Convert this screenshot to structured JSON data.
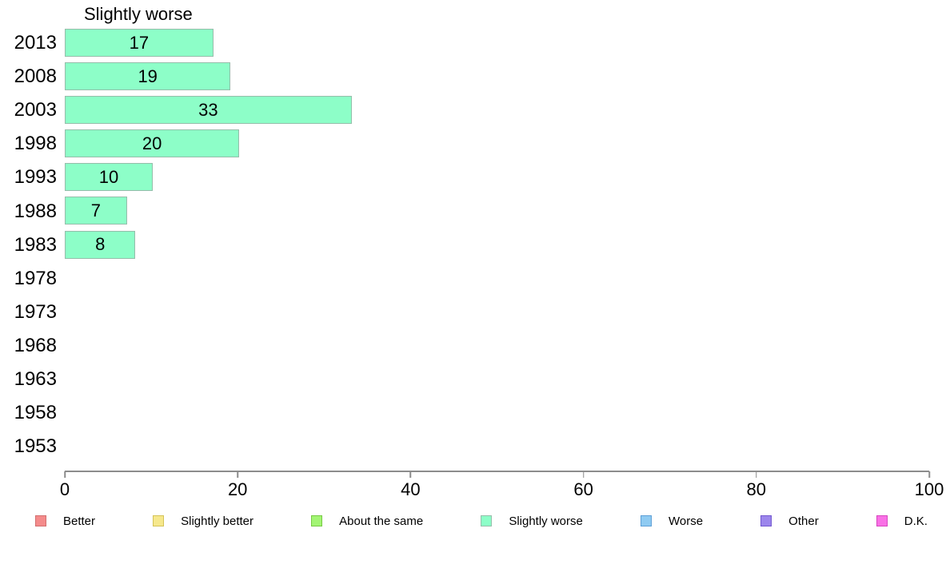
{
  "chart_data": {
    "type": "bar",
    "orientation": "horizontal",
    "title": "Slightly worse",
    "categories": [
      "2013",
      "2008",
      "2003",
      "1998",
      "1993",
      "1988",
      "1983",
      "1978",
      "1973",
      "1968",
      "1963",
      "1958",
      "1953"
    ],
    "values": [
      17,
      19,
      33,
      20,
      10,
      7,
      8,
      null,
      null,
      null,
      null,
      null,
      null
    ],
    "xlabel": "",
    "ylabel": "",
    "xlim": [
      0,
      100
    ],
    "x_ticks": [
      0,
      20,
      40,
      60,
      80,
      100
    ],
    "x_tick_labels": [
      "0",
      "20",
      "40",
      "60",
      "80",
      "100"
    ],
    "grid": false,
    "value_labels_shown": true,
    "legend_position": "bottom",
    "bar_fill": "#8dfec8",
    "bar_border": "#95bdaa",
    "axis_color": "#8c8c8c",
    "text_color": "#000000",
    "background_color": "#ffffff",
    "legend": [
      {
        "label": "Better",
        "fill": "#f48b8b",
        "border": "#d26f6f"
      },
      {
        "label": "Slightly better",
        "fill": "#f6e88c",
        "border": "#d4c358"
      },
      {
        "label": "About the same",
        "fill": "#a2f573",
        "border": "#77c944"
      },
      {
        "label": "Slightly worse",
        "fill": "#8dfec8",
        "border": "#95bdaa"
      },
      {
        "label": "Worse",
        "fill": "#8fcbf2",
        "border": "#5e9fd6"
      },
      {
        "label": "Other",
        "fill": "#9c86ec",
        "border": "#7258d0"
      },
      {
        "label": "D.K.",
        "fill": "#f970e6",
        "border": "#d647bf"
      }
    ]
  }
}
